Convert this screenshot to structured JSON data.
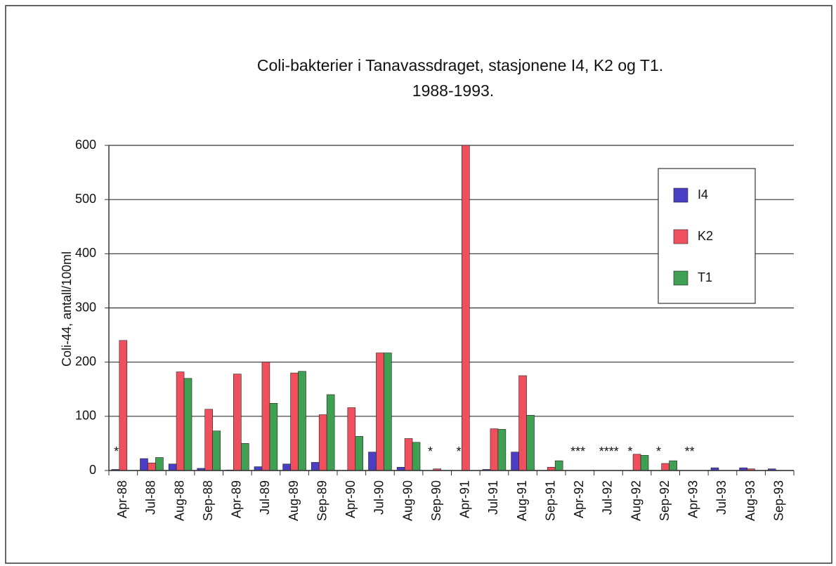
{
  "chart_data": {
    "type": "bar",
    "title": [
      "Coli-bakterier i Tanavassdraget, stasjonene I4, K2 og T1.",
      "1988-1993."
    ],
    "y_label": "Coli-44, antall/100ml",
    "categories": [
      "Apr-88",
      "Jul-88",
      "Aug-88",
      "Sep-88",
      "Apr-89",
      "Jul-89",
      "Aug-89",
      "Sep-89",
      "Apr-90",
      "Jul-90",
      "Aug-90",
      "Sep-90",
      "Apr-91",
      "Jul-91",
      "Aug-91",
      "Sep-91",
      "Apr-92",
      "Jul-92",
      "Aug-92",
      "Sep-92",
      "Apr-93",
      "Jul-93",
      "Aug-93",
      "Sep-93"
    ],
    "series": [
      {
        "name": "I4",
        "color": "#4a3fc4",
        "values": [
          2,
          22,
          12,
          4,
          1,
          7,
          12,
          15,
          0,
          34,
          6,
          null,
          null,
          2,
          34,
          0,
          null,
          null,
          null,
          null,
          null,
          5,
          5,
          3
        ]
      },
      {
        "name": "K2",
        "color": "#f0505e",
        "values": [
          240,
          14,
          182,
          113,
          178,
          200,
          180,
          103,
          116,
          217,
          59,
          3,
          600,
          77,
          175,
          6,
          null,
          null,
          30,
          13,
          null,
          0,
          3,
          0
        ]
      },
      {
        "name": "T1",
        "color": "#3f9f52",
        "values": [
          null,
          24,
          170,
          73,
          50,
          124,
          183,
          140,
          63,
          217,
          52,
          null,
          null,
          76,
          102,
          18,
          null,
          null,
          28,
          18,
          null,
          0,
          0,
          0
        ]
      }
    ],
    "note_labels": [
      "*",
      null,
      null,
      null,
      null,
      null,
      null,
      null,
      null,
      null,
      null,
      "*",
      "*",
      null,
      null,
      null,
      "***",
      "****",
      "*",
      "*",
      "**",
      null,
      null,
      null
    ],
    "ylim": [
      0,
      600
    ],
    "yticks": [
      0,
      100,
      200,
      300,
      400,
      500,
      600
    ],
    "grid": true,
    "legend": "right"
  }
}
